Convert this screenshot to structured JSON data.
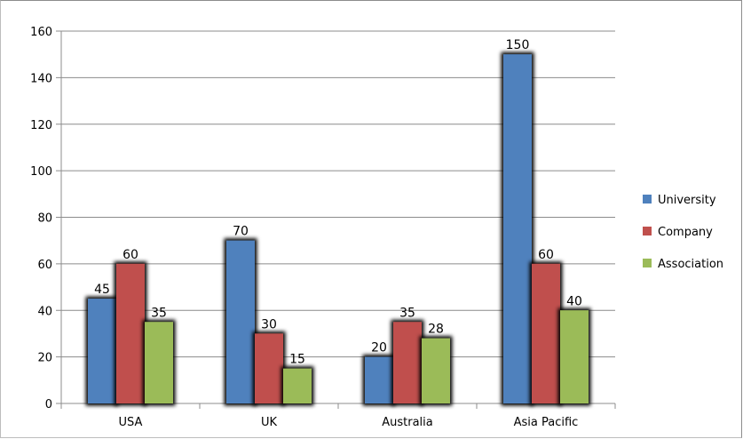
{
  "chart_data": {
    "type": "bar",
    "categories": [
      "USA",
      "UK",
      "Australia",
      "Asia Pacific"
    ],
    "series": [
      {
        "name": "University",
        "values": [
          45,
          70,
          20,
          150
        ],
        "color": "#4f81bd"
      },
      {
        "name": "Company",
        "values": [
          60,
          30,
          35,
          60
        ],
        "color": "#c0504d"
      },
      {
        "name": "Association",
        "values": [
          35,
          15,
          28,
          40
        ],
        "color": "#9bbb59"
      }
    ],
    "ylim": [
      0,
      160
    ],
    "yticks": [
      0,
      20,
      40,
      60,
      80,
      100,
      120,
      140,
      160
    ],
    "grid": true,
    "legend": "right"
  }
}
